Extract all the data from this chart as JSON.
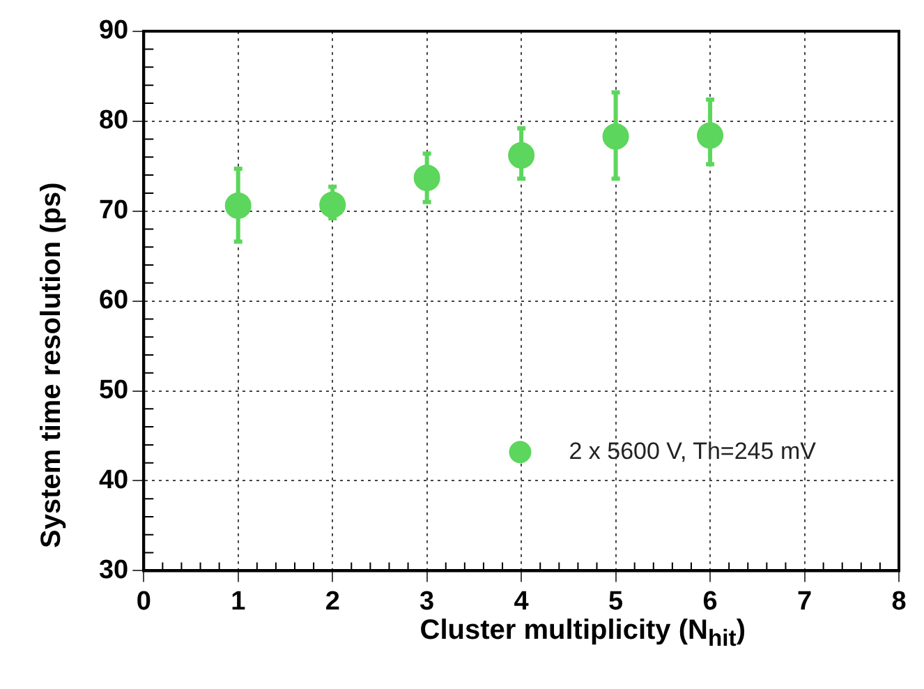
{
  "chart_data": {
    "type": "scatter",
    "xlabel": "Cluster multiplicity (N$_{hit}$)",
    "ylabel": "System time resolution (ps)",
    "x": [
      1,
      2,
      3,
      4,
      5,
      6
    ],
    "series": [
      {
        "name": "2 x 5600 V, Th=245 mV",
        "color": "#5cd65c",
        "values": [
          70.6,
          70.7,
          73.7,
          76.2,
          78.3,
          78.4
        ],
        "errors": [
          [
            66.6,
            74.7
          ],
          [
            69.2,
            72.7
          ],
          [
            71.0,
            76.4
          ],
          [
            73.6,
            79.2
          ],
          [
            73.6,
            83.2
          ],
          [
            75.2,
            82.4
          ]
        ]
      }
    ],
    "xlim": [
      0,
      8
    ],
    "xticks": [
      0,
      1,
      2,
      3,
      4,
      5,
      6,
      7,
      8
    ],
    "ylim": [
      30,
      90
    ],
    "yticks": [
      30,
      40,
      50,
      60,
      70,
      80,
      90
    ],
    "grid": true,
    "legend": "right",
    "marker": "circle"
  }
}
